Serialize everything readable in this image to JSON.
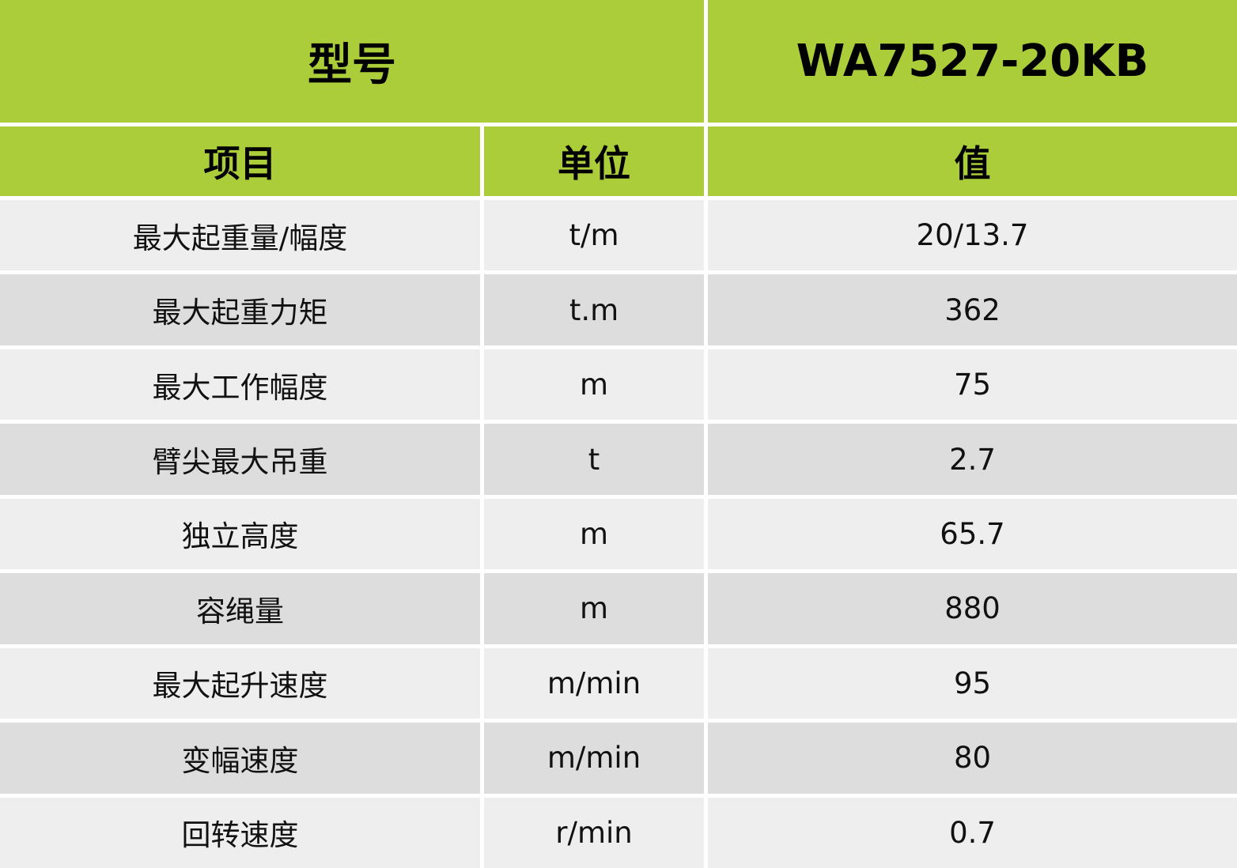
{
  "header": {
    "model_label": "型号",
    "model_value": "WA7527-20KB"
  },
  "columns": {
    "item": "项目",
    "unit": "单位",
    "value": "值"
  },
  "colors": {
    "header_green": "#abcd3a",
    "row_light": "#eeeeee",
    "row_dark": "#dddddd"
  },
  "rows": [
    {
      "item": "最大起重量/幅度",
      "unit": "t/m",
      "value": "20/13.7"
    },
    {
      "item": "最大起重力矩",
      "unit": "t.m",
      "value": "362"
    },
    {
      "item": "最大工作幅度",
      "unit": "m",
      "value": "75"
    },
    {
      "item": "臂尖最大吊重",
      "unit": "t",
      "value": "2.7"
    },
    {
      "item": "独立高度",
      "unit": "m",
      "value": "65.7"
    },
    {
      "item": "容绳量",
      "unit": "m",
      "value": "880"
    },
    {
      "item": "最大起升速度",
      "unit": "m/min",
      "value": "95"
    },
    {
      "item": "变幅速度",
      "unit": "m/min",
      "value": "80"
    },
    {
      "item": "回转速度",
      "unit": "r/min",
      "value": "0.7"
    }
  ]
}
